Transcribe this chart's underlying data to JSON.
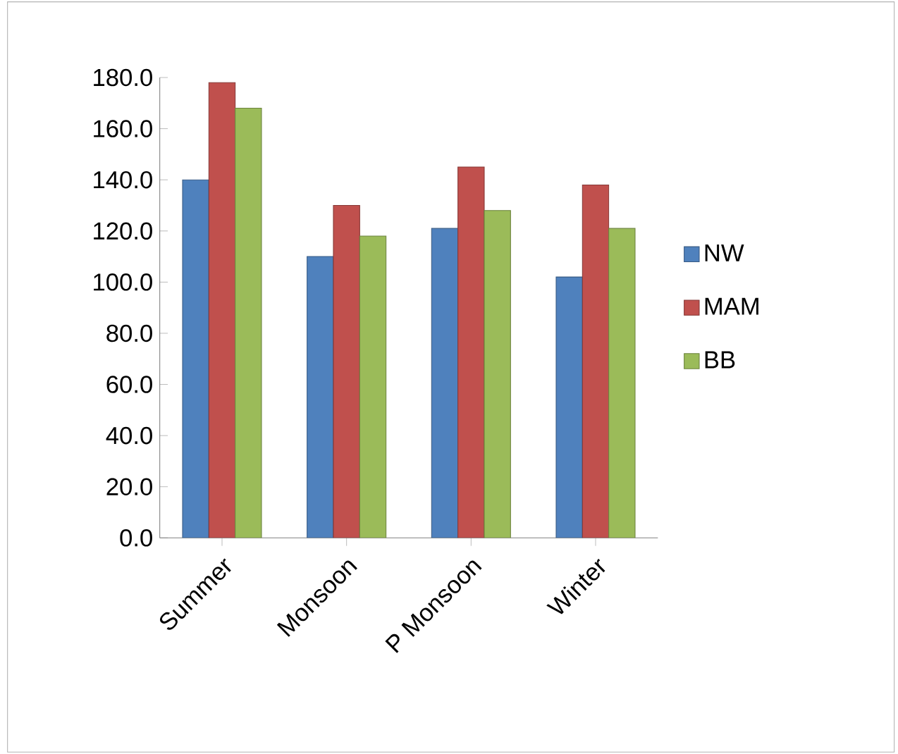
{
  "chart_data": {
    "type": "bar",
    "categories": [
      "Summer",
      "Monsoon",
      "P Monsoon",
      "Winter"
    ],
    "series": [
      {
        "name": "NW",
        "color": "#4f81bd",
        "values": [
          140,
          110,
          121,
          102
        ]
      },
      {
        "name": "MAM",
        "color": "#c0504d",
        "values": [
          178,
          130,
          145,
          138
        ]
      },
      {
        "name": "BB",
        "color": "#9bbb59",
        "values": [
          168,
          118,
          128,
          121
        ]
      }
    ],
    "ylim": [
      0,
      180
    ],
    "yticks": [
      {
        "value": 0,
        "label": "0.0"
      },
      {
        "value": 20,
        "label": "20.0"
      },
      {
        "value": 40,
        "label": "40.0"
      },
      {
        "value": 60,
        "label": "60.0"
      },
      {
        "value": 80,
        "label": "80.0"
      },
      {
        "value": 100,
        "label": "100.0"
      },
      {
        "value": 120,
        "label": "120.0"
      },
      {
        "value": 140,
        "label": "140.0"
      },
      {
        "value": 160,
        "label": "160.0"
      },
      {
        "value": 180,
        "label": "180.0"
      }
    ],
    "grid": false,
    "legend": "right"
  }
}
